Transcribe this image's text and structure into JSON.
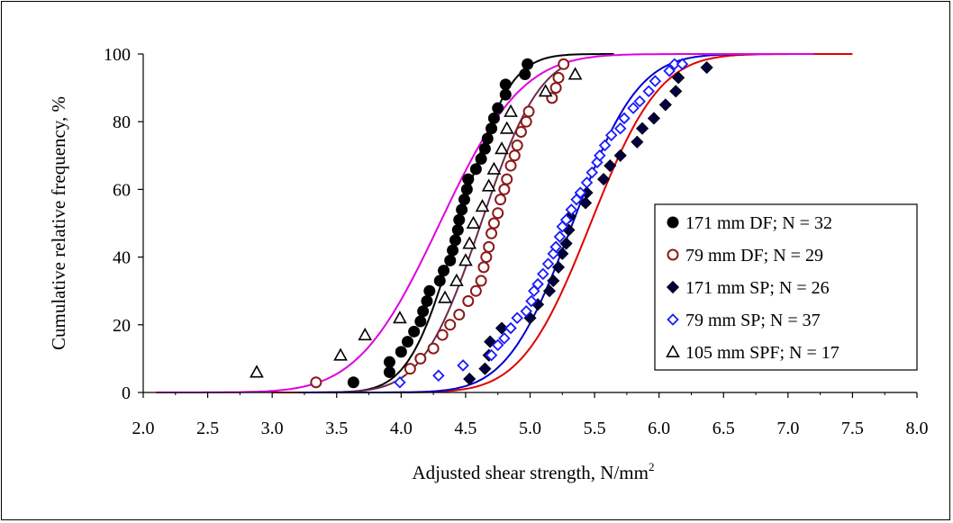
{
  "chart_data": {
    "type": "scatter",
    "title": "",
    "xlabel": "Adjusted shear strength, N/mm",
    "xlabel_superscript": "2",
    "ylabel": "Cumulative relative frequency, %",
    "xlim": [
      2.0,
      8.0
    ],
    "ylim": [
      0,
      100
    ],
    "x_ticks": [
      "2.0",
      "2.5",
      "3.0",
      "3.5",
      "4.0",
      "4.5",
      "5.0",
      "5.5",
      "6.0",
      "6.5",
      "7.0",
      "7.5",
      "8.0"
    ],
    "y_ticks": [
      "0",
      "20",
      "40",
      "60",
      "80",
      "100"
    ],
    "grid": false,
    "legend_position": "right",
    "series": [
      {
        "name": "171 mm DF; N = 32",
        "marker": "filled-circle",
        "color": "#000000",
        "fit_color": "#000000",
        "fit": {
          "mean": 4.45,
          "sd": 0.3,
          "x_range": [
            3.1,
            5.65
          ]
        },
        "points": [
          [
            3.63,
            3
          ],
          [
            3.91,
            6
          ],
          [
            3.91,
            9
          ],
          [
            4.0,
            12
          ],
          [
            4.05,
            15
          ],
          [
            4.1,
            18
          ],
          [
            4.15,
            21
          ],
          [
            4.17,
            24
          ],
          [
            4.2,
            27
          ],
          [
            4.22,
            30
          ],
          [
            4.3,
            33
          ],
          [
            4.33,
            36
          ],
          [
            4.38,
            39
          ],
          [
            4.4,
            42
          ],
          [
            4.42,
            45
          ],
          [
            4.44,
            48
          ],
          [
            4.45,
            51
          ],
          [
            4.47,
            54
          ],
          [
            4.49,
            57
          ],
          [
            4.51,
            60
          ],
          [
            4.52,
            63
          ],
          [
            4.58,
            66
          ],
          [
            4.62,
            69
          ],
          [
            4.65,
            72
          ],
          [
            4.67,
            75
          ],
          [
            4.7,
            78
          ],
          [
            4.72,
            81
          ],
          [
            4.75,
            84
          ],
          [
            4.81,
            88
          ],
          [
            4.81,
            91
          ],
          [
            4.96,
            94
          ],
          [
            4.98,
            97
          ]
        ]
      },
      {
        "name": "79 mm DF; N = 29",
        "marker": "open-circle",
        "color": "#8b1a1a",
        "fit_color": "#6b2b4b",
        "fit": {
          "mean": 4.62,
          "sd": 0.36,
          "x_range": [
            3.3,
            5.3
          ]
        },
        "points": [
          [
            3.34,
            3
          ],
          [
            4.07,
            7
          ],
          [
            4.15,
            10
          ],
          [
            4.25,
            13
          ],
          [
            4.32,
            17
          ],
          [
            4.38,
            20
          ],
          [
            4.45,
            23
          ],
          [
            4.52,
            27
          ],
          [
            4.58,
            30
          ],
          [
            4.62,
            33
          ],
          [
            4.64,
            37
          ],
          [
            4.66,
            40
          ],
          [
            4.68,
            43
          ],
          [
            4.7,
            47
          ],
          [
            4.72,
            50
          ],
          [
            4.75,
            53
          ],
          [
            4.77,
            57
          ],
          [
            4.8,
            60
          ],
          [
            4.82,
            63
          ],
          [
            4.85,
            67
          ],
          [
            4.88,
            70
          ],
          [
            4.9,
            73
          ],
          [
            4.93,
            77
          ],
          [
            4.97,
            80
          ],
          [
            4.99,
            83
          ],
          [
            5.17,
            87
          ],
          [
            5.2,
            90
          ],
          [
            5.22,
            93
          ],
          [
            5.26,
            97
          ]
        ]
      },
      {
        "name": "171 mm SP; N = 26",
        "marker": "filled-diamond",
        "color": "#000040",
        "fit_color": "#e00000",
        "fit": {
          "mean": 5.47,
          "sd": 0.42,
          "x_range": [
            3.0,
            7.5
          ]
        },
        "points": [
          [
            4.53,
            4
          ],
          [
            4.65,
            7
          ],
          [
            4.68,
            11
          ],
          [
            4.69,
            15
          ],
          [
            4.78,
            19
          ],
          [
            5.0,
            22
          ],
          [
            5.06,
            26
          ],
          [
            5.15,
            30
          ],
          [
            5.18,
            33
          ],
          [
            5.22,
            37
          ],
          [
            5.25,
            41
          ],
          [
            5.28,
            44
          ],
          [
            5.3,
            48
          ],
          [
            5.31,
            52
          ],
          [
            5.43,
            56
          ],
          [
            5.44,
            59
          ],
          [
            5.57,
            63
          ],
          [
            5.62,
            67
          ],
          [
            5.7,
            70
          ],
          [
            5.83,
            74
          ],
          [
            5.87,
            78
          ],
          [
            5.96,
            81
          ],
          [
            6.05,
            85
          ],
          [
            6.13,
            89
          ],
          [
            6.15,
            93
          ],
          [
            6.37,
            96
          ]
        ]
      },
      {
        "name": "79 mm SP; N = 37",
        "marker": "open-diamond",
        "color": "#1a1aff",
        "fit_color": "#0000cc",
        "fit": {
          "mean": 5.33,
          "sd": 0.4,
          "x_range": [
            3.2,
            7.2
          ]
        },
        "points": [
          [
            3.99,
            3
          ],
          [
            4.29,
            5
          ],
          [
            4.48,
            8
          ],
          [
            4.7,
            11
          ],
          [
            4.75,
            14
          ],
          [
            4.8,
            16
          ],
          [
            4.85,
            19
          ],
          [
            4.9,
            22
          ],
          [
            4.97,
            24
          ],
          [
            5.01,
            27
          ],
          [
            5.03,
            30
          ],
          [
            5.06,
            32
          ],
          [
            5.1,
            35
          ],
          [
            5.14,
            38
          ],
          [
            5.18,
            41
          ],
          [
            5.2,
            43
          ],
          [
            5.23,
            46
          ],
          [
            5.25,
            49
          ],
          [
            5.28,
            51
          ],
          [
            5.32,
            54
          ],
          [
            5.36,
            57
          ],
          [
            5.39,
            59
          ],
          [
            5.44,
            62
          ],
          [
            5.48,
            65
          ],
          [
            5.52,
            68
          ],
          [
            5.54,
            70
          ],
          [
            5.58,
            73
          ],
          [
            5.63,
            76
          ],
          [
            5.7,
            78
          ],
          [
            5.73,
            81
          ],
          [
            5.8,
            84
          ],
          [
            5.85,
            86
          ],
          [
            5.92,
            89
          ],
          [
            5.97,
            92
          ],
          [
            6.08,
            95
          ],
          [
            6.12,
            97
          ],
          [
            6.18,
            97
          ]
        ]
      },
      {
        "name": "105 mm SPF; N = 17",
        "marker": "open-triangle",
        "color": "#000000",
        "fit_color": "#e000e0",
        "fit": {
          "mean": 4.3,
          "sd": 0.5,
          "x_range": [
            2.1,
            7.2
          ]
        },
        "points": [
          [
            2.88,
            6
          ],
          [
            3.53,
            11
          ],
          [
            3.72,
            17
          ],
          [
            3.99,
            22
          ],
          [
            4.34,
            28
          ],
          [
            4.43,
            33
          ],
          [
            4.5,
            39
          ],
          [
            4.53,
            44
          ],
          [
            4.56,
            50
          ],
          [
            4.63,
            55
          ],
          [
            4.68,
            61
          ],
          [
            4.72,
            66
          ],
          [
            4.78,
            72
          ],
          [
            4.82,
            78
          ],
          [
            4.85,
            83
          ],
          [
            5.12,
            89
          ],
          [
            5.35,
            94
          ]
        ]
      }
    ]
  }
}
